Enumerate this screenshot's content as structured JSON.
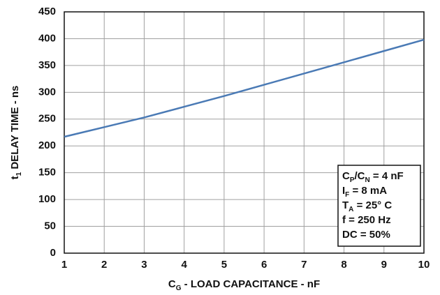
{
  "chart_data": {
    "type": "line",
    "x_label": [
      "C",
      "G",
      " - LOAD CAPACITANCE - nF"
    ],
    "y_label": [
      "t",
      "1",
      " DELAY TIME - ns"
    ],
    "x": [
      1,
      2,
      3,
      4,
      5,
      6,
      7,
      8,
      9,
      10
    ],
    "series": [
      {
        "color": "#4a7ab5",
        "values": [
          217,
          235,
          253,
          273,
          293,
          314,
          335,
          356,
          377,
          398
        ]
      }
    ],
    "xlim": [
      1,
      10
    ],
    "xticks": [
      1,
      2,
      3,
      4,
      5,
      6,
      7,
      8,
      9,
      10
    ],
    "ylim": [
      0,
      450
    ],
    "yticks": [
      0,
      50,
      100,
      150,
      200,
      250,
      300,
      350,
      400,
      450
    ],
    "grid": true,
    "annotation": [
      [
        "C",
        "P",
        "/C",
        "N",
        " = 4 nF"
      ],
      [
        "I",
        "F",
        " = 8 mA"
      ],
      [
        "T",
        "A",
        " = 25° C"
      ],
      [
        "f = 250 Hz"
      ],
      [
        "DC = 50%"
      ]
    ]
  }
}
